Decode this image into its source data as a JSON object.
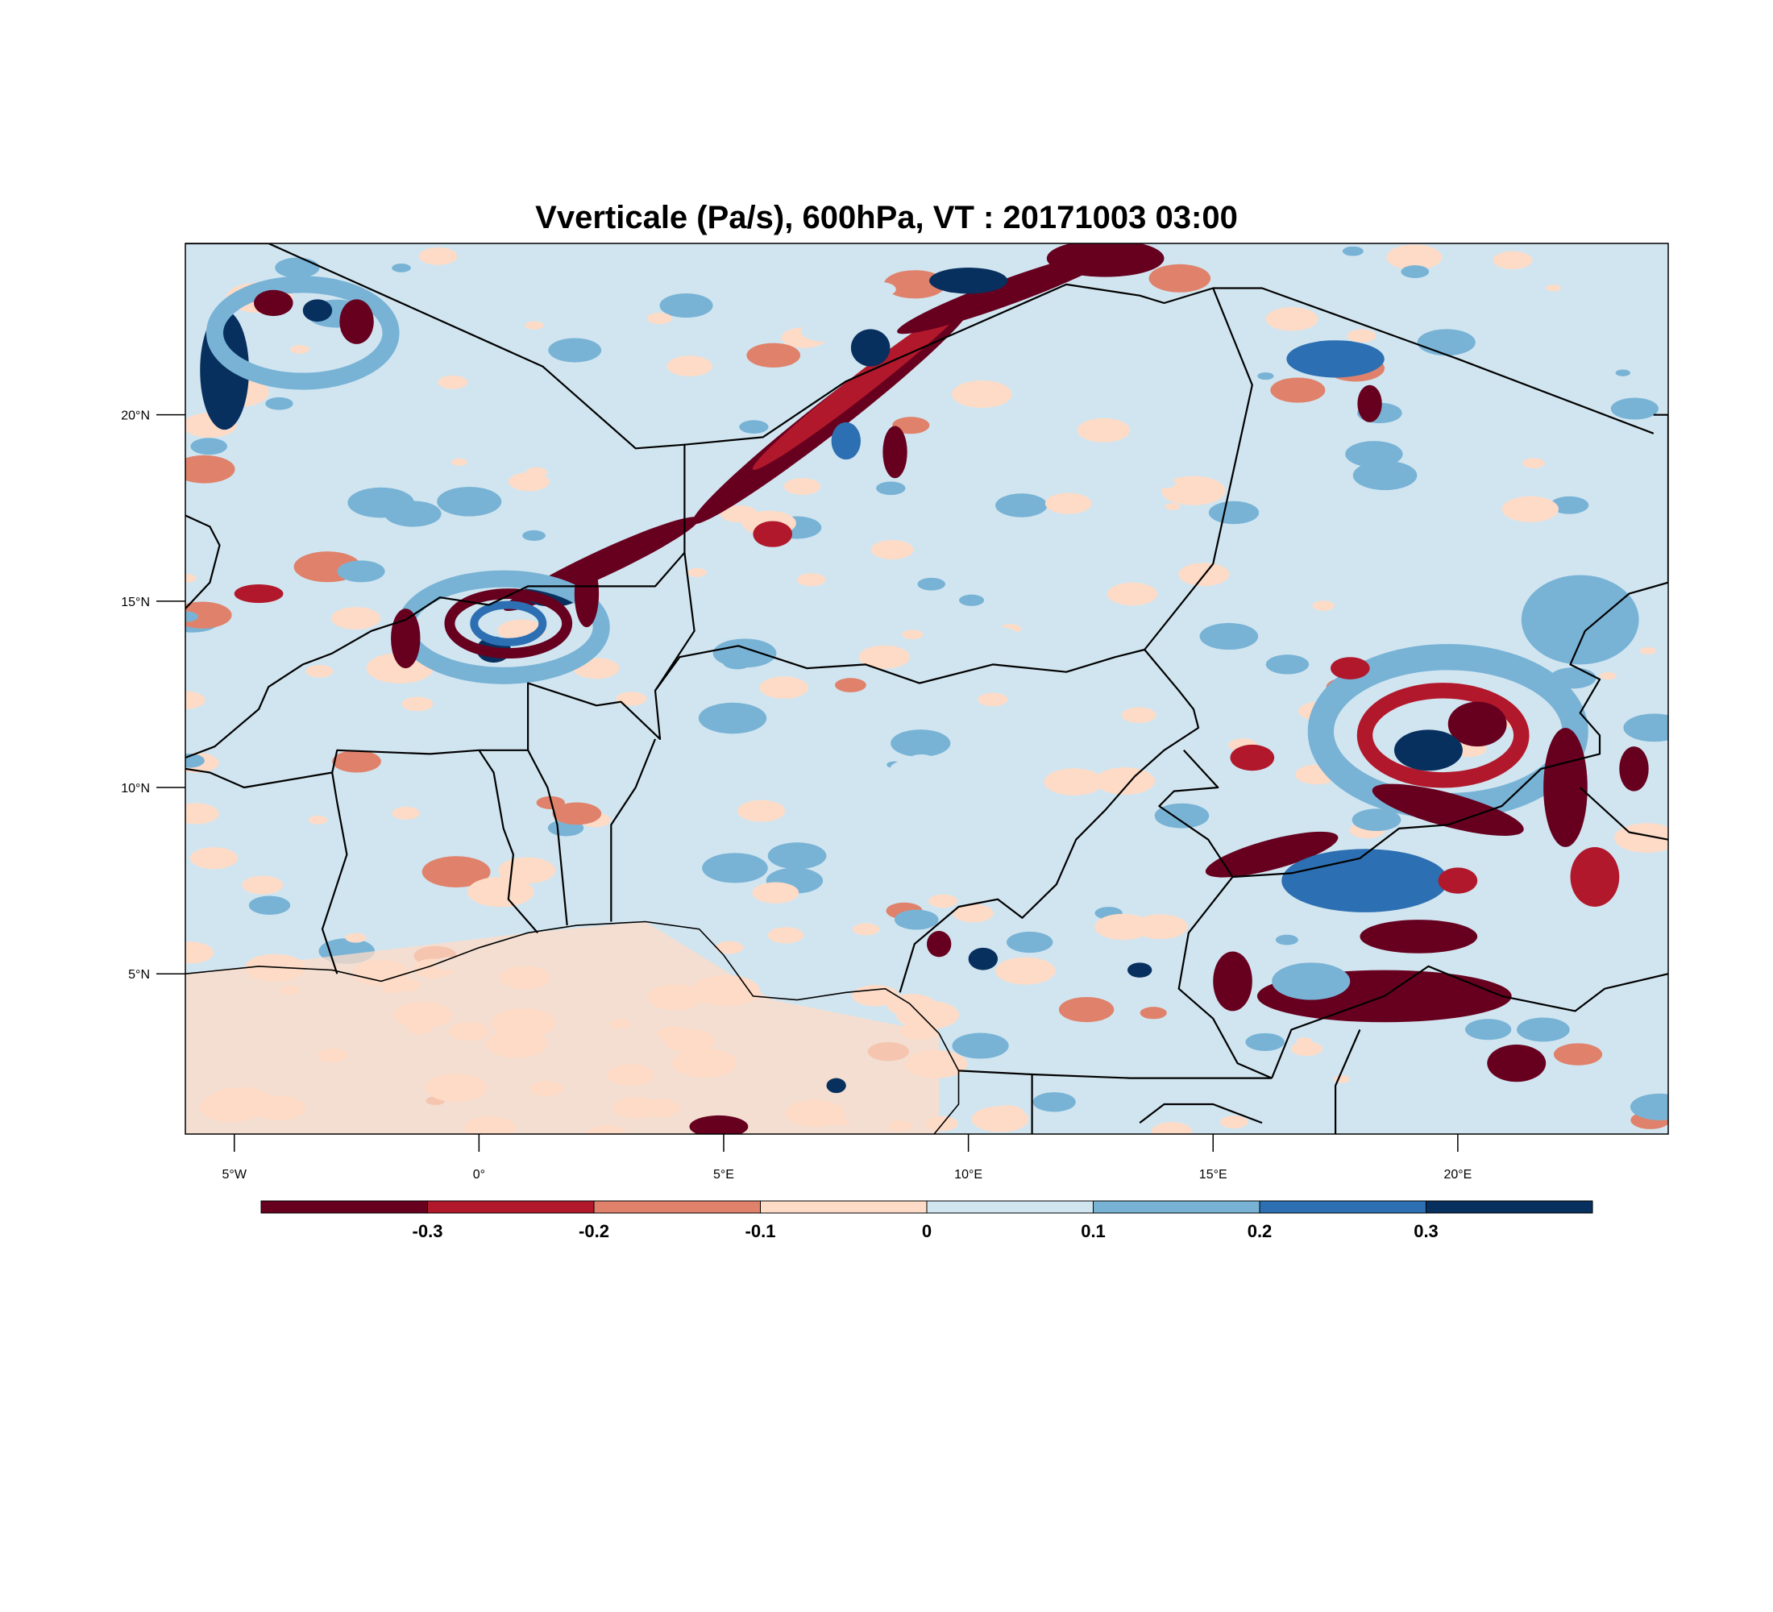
{
  "title": "Vverticale (Pa/s), 600hPa, VT : 20171003  03:00",
  "map": {
    "lon_range": [
      -6,
      24.3
    ],
    "lat_range": [
      0.7,
      24.6
    ],
    "lon_ticks": [
      {
        "value": -5,
        "label": "5°W"
      },
      {
        "value": 0,
        "label": "0°"
      },
      {
        "value": 5,
        "label": "5°E"
      },
      {
        "value": 10,
        "label": "10°E"
      },
      {
        "value": 15,
        "label": "15°E"
      },
      {
        "value": 20,
        "label": "20°E"
      }
    ],
    "lat_ticks": [
      {
        "value": 5,
        "label": "5°N"
      },
      {
        "value": 10,
        "label": "10°N"
      },
      {
        "value": 15,
        "label": "15°N"
      },
      {
        "value": 20,
        "label": "20°N"
      }
    ],
    "background_class": "0 to 0.1",
    "features": [
      {
        "kind": "band",
        "lon": 2.5,
        "lat": 16.0,
        "rx": 2.2,
        "ry": 0.35,
        "angle": -25,
        "cls": -0.35
      },
      {
        "kind": "band",
        "lon": 7.2,
        "lat": 20.0,
        "rx": 3.6,
        "ry": 0.45,
        "angle": -38,
        "cls": -0.35
      },
      {
        "kind": "band",
        "lon": 7.8,
        "lat": 20.8,
        "rx": 2.8,
        "ry": 0.3,
        "angle": -38,
        "cls": -0.25
      },
      {
        "kind": "band",
        "lon": 10.8,
        "lat": 23.3,
        "rx": 2.4,
        "ry": 0.35,
        "angle": -20,
        "cls": -0.35
      },
      {
        "kind": "blob",
        "lon": 12.8,
        "lat": 24.2,
        "rx": 1.2,
        "ry": 0.5,
        "cls": -0.35
      },
      {
        "kind": "blob",
        "lon": 10.0,
        "lat": 23.6,
        "rx": 0.8,
        "ry": 0.35,
        "cls": 0.35
      },
      {
        "kind": "blob",
        "lon": 8.0,
        "lat": 21.8,
        "rx": 0.4,
        "ry": 0.5,
        "cls": 0.35
      },
      {
        "kind": "blob",
        "lon": 1.5,
        "lat": 15.2,
        "rx": 0.6,
        "ry": 0.35,
        "cls": 0.35
      },
      {
        "kind": "blob",
        "lon": 0.3,
        "lat": 13.7,
        "rx": 0.35,
        "ry": 0.35,
        "cls": 0.35
      },
      {
        "kind": "ring",
        "lon": 0.5,
        "lat": 14.3,
        "rx": 2.0,
        "ry": 1.3,
        "cls": 0.15
      },
      {
        "kind": "ring",
        "lon": 0.6,
        "lat": 14.4,
        "rx": 1.2,
        "ry": 0.8,
        "cls": -0.35
      },
      {
        "kind": "ring",
        "lon": 0.6,
        "lat": 14.4,
        "rx": 0.7,
        "ry": 0.5,
        "cls": 0.25
      },
      {
        "kind": "blob",
        "lon": -1.5,
        "lat": 14.0,
        "rx": 0.3,
        "ry": 0.8,
        "cls": -0.35
      },
      {
        "kind": "blob",
        "lon": 2.2,
        "lat": 15.2,
        "rx": 0.25,
        "ry": 0.9,
        "cls": -0.35
      },
      {
        "kind": "blob",
        "lon": -5.2,
        "lat": 21.2,
        "rx": 0.5,
        "ry": 1.6,
        "cls": 0.35
      },
      {
        "kind": "ring",
        "lon": -3.6,
        "lat": 22.2,
        "rx": 1.8,
        "ry": 1.3,
        "cls": 0.15
      },
      {
        "kind": "blob",
        "lon": -4.2,
        "lat": 23.0,
        "rx": 0.4,
        "ry": 0.35,
        "cls": -0.35
      },
      {
        "kind": "blob",
        "lon": -2.5,
        "lat": 22.5,
        "rx": 0.35,
        "ry": 0.6,
        "cls": -0.35
      },
      {
        "kind": "blob",
        "lon": -3.3,
        "lat": 22.8,
        "rx": 0.3,
        "ry": 0.3,
        "cls": 0.35
      },
      {
        "kind": "ring",
        "lon": 19.8,
        "lat": 11.5,
        "rx": 2.6,
        "ry": 2.0,
        "cls": 0.15
      },
      {
        "kind": "ring",
        "lon": 19.7,
        "lat": 11.4,
        "rx": 1.6,
        "ry": 1.2,
        "cls": -0.25
      },
      {
        "kind": "blob",
        "lon": 20.4,
        "lat": 11.7,
        "rx": 0.6,
        "ry": 0.6,
        "cls": -0.35
      },
      {
        "kind": "blob",
        "lon": 19.4,
        "lat": 11.0,
        "rx": 0.7,
        "ry": 0.55,
        "cls": 0.35
      },
      {
        "kind": "band",
        "lon": 19.8,
        "lat": 9.4,
        "rx": 1.6,
        "ry": 0.45,
        "angle": 15,
        "cls": -0.35
      },
      {
        "kind": "band",
        "lon": 16.2,
        "lat": 8.2,
        "rx": 1.4,
        "ry": 0.4,
        "angle": -15,
        "cls": -0.35
      },
      {
        "kind": "blob",
        "lon": 18.1,
        "lat": 7.5,
        "rx": 1.3,
        "ry": 0.6,
        "cls": 0.35
      },
      {
        "kind": "blob",
        "lon": 18.1,
        "lat": 7.5,
        "rx": 1.7,
        "ry": 0.85,
        "cls": 0.25
      },
      {
        "kind": "band",
        "lon": 19.2,
        "lat": 6.0,
        "rx": 1.2,
        "ry": 0.45,
        "angle": 0,
        "cls": -0.35
      },
      {
        "kind": "band",
        "lon": 18.5,
        "lat": 4.4,
        "rx": 2.6,
        "ry": 0.7,
        "angle": 0,
        "cls": -0.35
      },
      {
        "kind": "blob",
        "lon": 17.0,
        "lat": 4.8,
        "rx": 0.8,
        "ry": 0.5,
        "cls": 0.15
      },
      {
        "kind": "blob",
        "lon": 15.4,
        "lat": 4.8,
        "rx": 0.4,
        "ry": 0.8,
        "cls": -0.35
      },
      {
        "kind": "band",
        "lon": 22.2,
        "lat": 10.0,
        "rx": 0.45,
        "ry": 1.6,
        "angle": 0,
        "cls": -0.35
      },
      {
        "kind": "blob",
        "lon": 23.6,
        "lat": 10.5,
        "rx": 0.3,
        "ry": 0.6,
        "cls": -0.35
      },
      {
        "kind": "blob",
        "lon": 22.8,
        "lat": 7.6,
        "rx": 0.5,
        "ry": 0.8,
        "cls": -0.25
      },
      {
        "kind": "blob",
        "lon": 21.2,
        "lat": 2.6,
        "rx": 0.6,
        "ry": 0.5,
        "cls": -0.35
      },
      {
        "kind": "blob",
        "lon": 10.3,
        "lat": 5.4,
        "rx": 0.3,
        "ry": 0.3,
        "cls": 0.35
      },
      {
        "kind": "blob",
        "lon": 9.4,
        "lat": 5.8,
        "rx": 0.25,
        "ry": 0.35,
        "cls": -0.35
      },
      {
        "kind": "blob",
        "lon": 4.9,
        "lat": 0.9,
        "rx": 0.6,
        "ry": 0.3,
        "cls": -0.35
      },
      {
        "kind": "blob",
        "lon": 7.3,
        "lat": 2.0,
        "rx": 0.2,
        "ry": 0.2,
        "cls": 0.35
      },
      {
        "kind": "blob",
        "lon": 7.5,
        "lat": 19.3,
        "rx": 0.3,
        "ry": 0.5,
        "cls": 0.25
      },
      {
        "kind": "blob",
        "lon": 8.5,
        "lat": 19.0,
        "rx": 0.25,
        "ry": 0.7,
        "cls": -0.35
      },
      {
        "kind": "blob",
        "lon": 18.2,
        "lat": 20.3,
        "rx": 0.25,
        "ry": 0.5,
        "cls": -0.35
      },
      {
        "kind": "blob",
        "lon": 17.5,
        "lat": 21.5,
        "rx": 1.0,
        "ry": 0.5,
        "cls": 0.25
      },
      {
        "kind": "blob",
        "lon": 13.5,
        "lat": 5.1,
        "rx": 0.25,
        "ry": 0.2,
        "cls": 0.35
      },
      {
        "kind": "blob",
        "lon": 20.0,
        "lat": 7.5,
        "rx": 0.4,
        "ry": 0.35,
        "cls": -0.25
      },
      {
        "kind": "blob",
        "lon": 22.5,
        "lat": 14.5,
        "rx": 1.2,
        "ry": 1.2,
        "cls": 0.15
      },
      {
        "kind": "blob",
        "lon": 17.8,
        "lat": 13.2,
        "rx": 0.4,
        "ry": 0.3,
        "cls": -0.25
      },
      {
        "kind": "blob",
        "lon": 15.8,
        "lat": 10.8,
        "rx": 0.45,
        "ry": 0.35,
        "cls": -0.25
      },
      {
        "kind": "blob",
        "lon": 6.0,
        "lat": 16.8,
        "rx": 0.4,
        "ry": 0.35,
        "cls": -0.2
      },
      {
        "kind": "blob",
        "lon": -4.5,
        "lat": 15.2,
        "rx": 0.5,
        "ry": 0.25,
        "cls": -0.2
      },
      {
        "kind": "blob",
        "lon": 2.0,
        "lat": 9.3,
        "rx": 0.5,
        "ry": 0.3,
        "cls": -0.15
      },
      {
        "kind": "blob",
        "lon": -2.5,
        "lat": 10.7,
        "rx": 0.5,
        "ry": 0.3,
        "cls": -0.15
      }
    ],
    "borders": [
      [
        [
          -6,
          24.6
        ],
        [
          -4.3,
          24.6
        ],
        [
          1.3,
          21.3
        ],
        [
          3.2,
          19.1
        ],
        [
          4.2,
          19.2
        ],
        [
          4.2,
          17.0
        ],
        [
          4.2,
          16.3
        ],
        [
          3.6,
          15.4
        ],
        [
          1.0,
          15.4
        ],
        [
          0.2,
          14.9
        ],
        [
          -0.8,
          15.1
        ],
        [
          -1.5,
          14.5
        ],
        [
          -2.2,
          14.2
        ],
        [
          -3.0,
          13.6
        ],
        [
          -3.6,
          13.3
        ],
        [
          -4.3,
          12.7
        ],
        [
          -4.5,
          12.1
        ],
        [
          -5.4,
          11.1
        ],
        [
          -6,
          10.8
        ]
      ],
      [
        [
          4.2,
          19.2
        ],
        [
          5.8,
          19.4
        ],
        [
          7.5,
          20.9
        ],
        [
          12.0,
          23.5
        ],
        [
          13.5,
          23.2
        ],
        [
          14.0,
          23.0
        ],
        [
          15.0,
          23.4
        ],
        [
          16.0,
          23.4
        ],
        [
          20.0,
          21.5
        ],
        [
          24.0,
          19.5
        ]
      ],
      [
        [
          4.2,
          16.3
        ],
        [
          4.4,
          14.2
        ],
        [
          3.6,
          12.6
        ],
        [
          3.7,
          11.3
        ],
        [
          2.9,
          12.3
        ],
        [
          2.4,
          12.2
        ],
        [
          1.0,
          12.8
        ],
        [
          1.0,
          11.0
        ],
        [
          0.0,
          11.0
        ],
        [
          -1.0,
          10.9
        ],
        [
          -2.9,
          11.0
        ],
        [
          -3.0,
          10.4
        ],
        [
          -2.9,
          9.6
        ],
        [
          -2.7,
          8.2
        ],
        [
          -3.0,
          7.0
        ],
        [
          -3.2,
          6.2
        ],
        [
          -2.9,
          5.0
        ]
      ],
      [
        [
          -6,
          10.5
        ],
        [
          -5.5,
          10.4
        ],
        [
          -4.8,
          10.0
        ],
        [
          -3.0,
          10.4
        ]
      ],
      [
        [
          0.0,
          11.0
        ],
        [
          0.3,
          10.4
        ],
        [
          0.5,
          8.9
        ],
        [
          0.7,
          8.2
        ],
        [
          0.6,
          7.0
        ],
        [
          1.2,
          6.1
        ]
      ],
      [
        [
          1.0,
          11.0
        ],
        [
          1.4,
          10.0
        ],
        [
          1.6,
          9.0
        ],
        [
          1.8,
          6.3
        ]
      ],
      [
        [
          2.7,
          6.4
        ],
        [
          2.7,
          9.0
        ],
        [
          3.2,
          10.0
        ],
        [
          3.6,
          11.3
        ]
      ],
      [
        [
          3.6,
          12.6
        ],
        [
          4.1,
          13.5
        ],
        [
          5.3,
          13.8
        ],
        [
          6.7,
          13.2
        ],
        [
          7.9,
          13.3
        ],
        [
          9.0,
          12.8
        ],
        [
          10.5,
          13.3
        ],
        [
          12.0,
          13.1
        ],
        [
          13.0,
          13.5
        ],
        [
          13.6,
          13.7
        ]
      ],
      [
        [
          13.6,
          13.7
        ],
        [
          15.0,
          16.0
        ],
        [
          15.5,
          19.0
        ],
        [
          15.8,
          20.8
        ],
        [
          15.0,
          23.4
        ]
      ],
      [
        [
          24.0,
          20.0
        ],
        [
          24.3,
          20.0
        ],
        [
          24.3,
          15.5
        ],
        [
          23.5,
          15.2
        ],
        [
          22.6,
          14.2
        ],
        [
          22.3,
          13.3
        ],
        [
          22.9,
          12.9
        ],
        [
          22.5,
          12.0
        ],
        [
          22.9,
          11.4
        ],
        [
          22.9,
          10.9
        ],
        [
          21.7,
          10.5
        ],
        [
          20.9,
          9.5
        ],
        [
          19.8,
          9.0
        ],
        [
          18.8,
          8.9
        ],
        [
          18.0,
          8.1
        ],
        [
          16.6,
          7.7
        ],
        [
          15.4,
          7.6
        ],
        [
          14.5,
          6.1
        ],
        [
          14.3,
          4.6
        ],
        [
          15.0,
          3.8
        ],
        [
          15.5,
          2.6
        ],
        [
          16.2,
          2.2
        ]
      ],
      [
        [
          13.6,
          13.7
        ],
        [
          14.3,
          12.6
        ],
        [
          14.6,
          12.1
        ],
        [
          14.7,
          11.6
        ],
        [
          14.0,
          11.0
        ],
        [
          13.4,
          10.3
        ],
        [
          12.8,
          9.4
        ],
        [
          12.2,
          8.6
        ],
        [
          11.8,
          7.4
        ],
        [
          11.1,
          6.5
        ],
        [
          10.6,
          7.0
        ],
        [
          9.8,
          6.8
        ],
        [
          8.9,
          5.8
        ],
        [
          8.6,
          4.5
        ]
      ],
      [
        [
          14.4,
          11.0
        ],
        [
          15.1,
          10.0
        ],
        [
          14.2,
          9.9
        ],
        [
          13.9,
          9.5
        ],
        [
          14.9,
          8.6
        ],
        [
          15.4,
          7.6
        ]
      ],
      [
        [
          16.2,
          2.2
        ],
        [
          16.6,
          3.5
        ],
        [
          18.5,
          4.4
        ],
        [
          19.4,
          5.2
        ],
        [
          20.9,
          4.4
        ],
        [
          22.4,
          4.0
        ],
        [
          23.0,
          4.6
        ],
        [
          24.3,
          5.0
        ]
      ],
      [
        [
          9.8,
          2.4
        ],
        [
          11.3,
          2.3
        ],
        [
          13.3,
          2.2
        ],
        [
          14.5,
          2.2
        ],
        [
          16.2,
          2.2
        ]
      ],
      [
        [
          11.3,
          0.7
        ],
        [
          11.3,
          2.3
        ]
      ],
      [
        [
          18.0,
          3.5
        ],
        [
          17.5,
          2.0
        ],
        [
          17.5,
          0.7
        ]
      ],
      [
        [
          22.5,
          10.0
        ],
        [
          23.5,
          8.8
        ],
        [
          24.3,
          8.6
        ]
      ],
      [
        [
          -6,
          14.8
        ],
        [
          -5.5,
          15.5
        ],
        [
          -5.3,
          16.5
        ],
        [
          -5.5,
          17.0
        ],
        [
          -6.0,
          17.3
        ]
      ],
      [
        [
          13.5,
          1.0
        ],
        [
          14.0,
          1.5
        ],
        [
          15.0,
          1.5
        ],
        [
          16.0,
          1.0
        ]
      ]
    ],
    "coast": [
      [
        -6,
        5.0
      ],
      [
        -4.5,
        5.2
      ],
      [
        -3.0,
        5.1
      ],
      [
        -2.0,
        4.8
      ],
      [
        -1.0,
        5.2
      ],
      [
        0.0,
        5.7
      ],
      [
        1.0,
        6.1
      ],
      [
        2.0,
        6.3
      ],
      [
        3.4,
        6.4
      ],
      [
        4.5,
        6.2
      ],
      [
        5.0,
        5.5
      ],
      [
        5.6,
        4.4
      ],
      [
        6.5,
        4.3
      ],
      [
        7.5,
        4.5
      ],
      [
        8.3,
        4.6
      ],
      [
        8.8,
        4.2
      ],
      [
        9.4,
        3.4
      ],
      [
        9.8,
        2.4
      ],
      [
        9.8,
        1.5
      ],
      [
        9.3,
        0.7
      ]
    ]
  },
  "colorbar": {
    "colors": [
      "#67001f",
      "#b2182b",
      "#e0826b",
      "#fddbc7",
      "#d1e5f0",
      "#78b3d6",
      "#2c6fb2",
      "#08305f"
    ],
    "labels": [
      "-0.3",
      "-0.2",
      "-0.1",
      "0",
      "0.1",
      "0.2",
      "0.3"
    ]
  }
}
